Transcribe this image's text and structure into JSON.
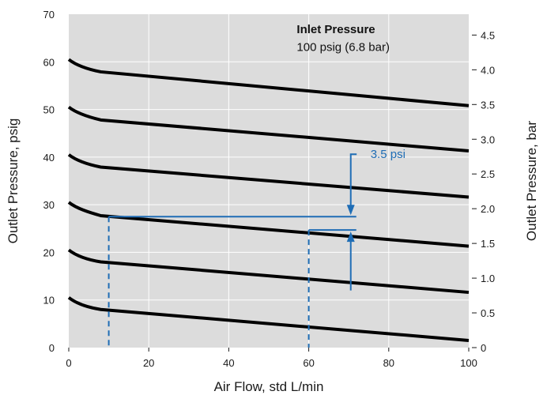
{
  "chart_data": {
    "type": "line",
    "xlabel": "Air Flow, std L/min",
    "ylabel": "Outlet Pressure, psig",
    "y2label": "Outlet Pressure, bar",
    "xlim": [
      0,
      100
    ],
    "ylim": [
      0,
      70
    ],
    "y2lim": [
      0,
      4.8
    ],
    "xticks": [
      0,
      20,
      40,
      60,
      80,
      100
    ],
    "yticks": [
      0,
      10,
      20,
      30,
      40,
      50,
      60,
      70
    ],
    "y2ticks": [
      0,
      0.5,
      1.0,
      1.5,
      2.0,
      2.5,
      3.0,
      3.5,
      4.0,
      4.5
    ],
    "y2ticklabels": [
      "0",
      "0.5",
      "1.0",
      "1.5",
      "2.0",
      "2.5",
      "3.0",
      "3.5",
      "4.0",
      "4.5"
    ],
    "grid": true,
    "series": [
      {
        "x": [
          0,
          2,
          5,
          8,
          100
        ],
        "values": [
          10.5,
          9.2,
          8.4,
          8.0,
          1.5
        ]
      },
      {
        "x": [
          0,
          2,
          5,
          8,
          100
        ],
        "values": [
          20.5,
          19.2,
          18.4,
          18.0,
          11.6
        ]
      },
      {
        "x": [
          0,
          2,
          5,
          8,
          100
        ],
        "values": [
          30.5,
          29.2,
          28.4,
          27.7,
          21.3
        ]
      },
      {
        "x": [
          0,
          2,
          5,
          8,
          100
        ],
        "values": [
          40.5,
          39.2,
          38.4,
          37.9,
          31.6
        ]
      },
      {
        "x": [
          0,
          2,
          5,
          8,
          100
        ],
        "values": [
          50.5,
          49.2,
          48.4,
          47.8,
          41.3
        ]
      },
      {
        "x": [
          0,
          2,
          5,
          8,
          100
        ],
        "values": [
          60.5,
          59.2,
          58.4,
          57.9,
          50.8
        ]
      }
    ],
    "annotations": {
      "inlet_title": "Inlet Pressure",
      "inlet_value": "100 psig (6.8 bar)",
      "droop_label": "3.5 psi",
      "line_color": "#1f6db5",
      "ref_points": [
        {
          "x": 10,
          "y": 27.5
        },
        {
          "x": 60,
          "y": 24.7
        }
      ],
      "arrow_x": 70.5,
      "label_start": [
        70,
        40.6
      ]
    },
    "colors": {
      "plot_bg": "#dcdcdc",
      "grid": "#ffffff",
      "curve": "#000000"
    }
  }
}
